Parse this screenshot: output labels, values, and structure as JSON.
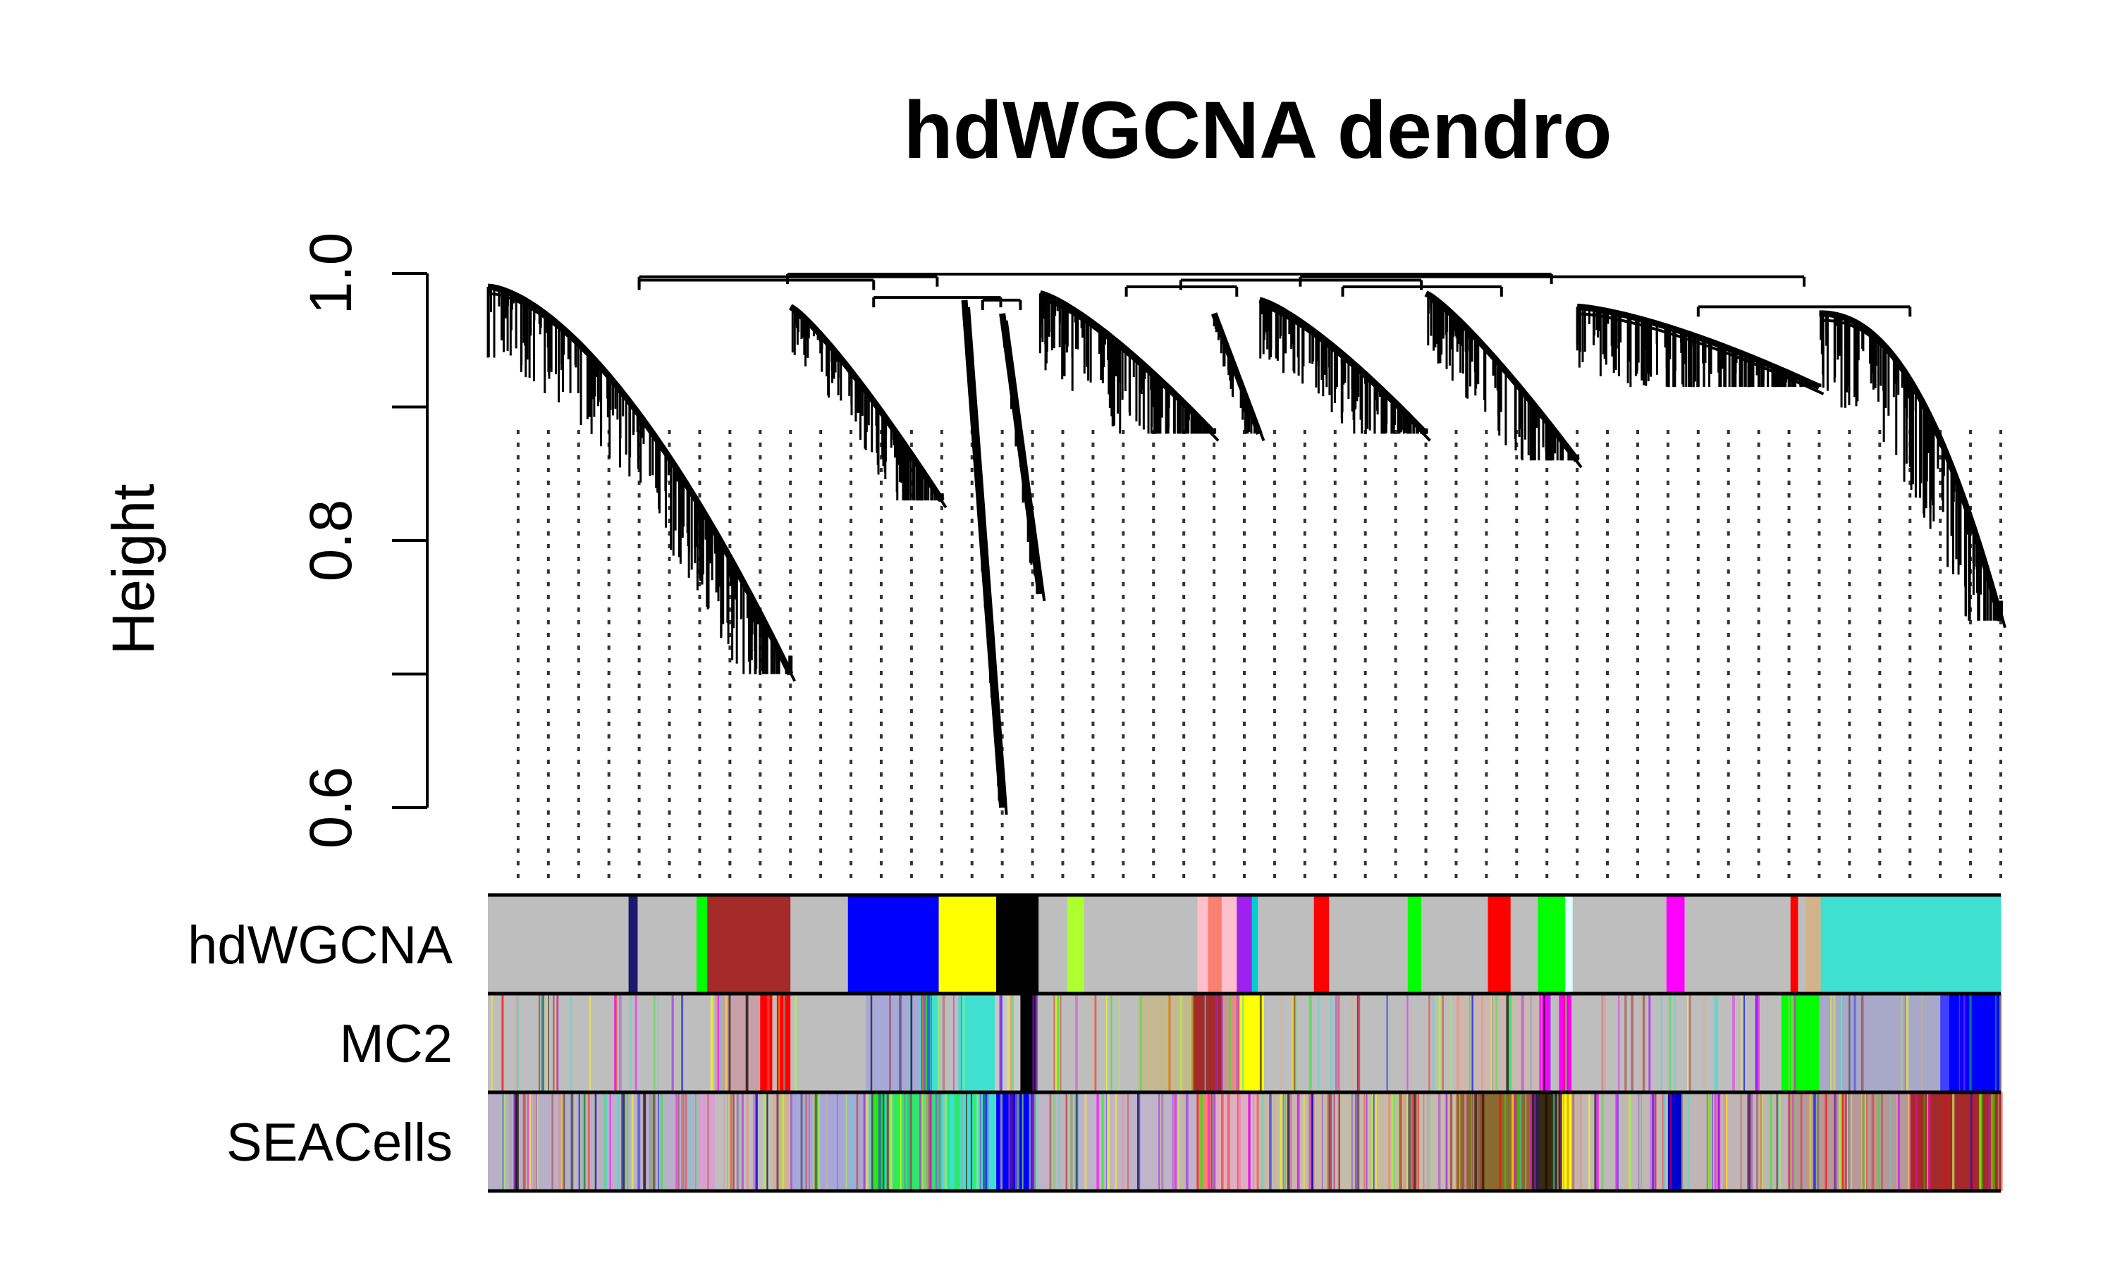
{
  "chart_data": {
    "type": "dendrogram",
    "title": "hdWGCNA dendro",
    "ylabel": "Height",
    "xlabel": "",
    "ylim": [
      0.6,
      1.0
    ],
    "y_ticks": [
      0.6,
      0.8,
      1.0
    ],
    "y_minor_ticks": [
      0.6,
      0.7,
      0.8,
      0.9,
      1.0
    ],
    "x_range": [
      0,
      1000
    ],
    "branches": [
      {
        "start": 0,
        "end": 200,
        "join": 0.99,
        "min": 0.7,
        "tail": 0.72,
        "shape": 1.6
      },
      {
        "start": 200,
        "end": 300,
        "join": 0.975,
        "min": 0.83,
        "tail": 0.4,
        "shape": 1.2
      },
      {
        "start": 315,
        "end": 340,
        "join": 0.98,
        "min": 0.6,
        "tail": 0.0,
        "shape": 1.0
      },
      {
        "start": 340,
        "end": 365,
        "join": 0.97,
        "min": 0.76,
        "tail": 0.0,
        "shape": 1.0
      },
      {
        "start": 365,
        "end": 480,
        "join": 0.985,
        "min": 0.88,
        "tail": 0.75,
        "shape": 1.3
      },
      {
        "start": 480,
        "end": 510,
        "join": 0.97,
        "min": 0.88,
        "tail": 0.0,
        "shape": 1.0
      },
      {
        "start": 510,
        "end": 620,
        "join": 0.98,
        "min": 0.88,
        "tail": 0.5,
        "shape": 1.3
      },
      {
        "start": 620,
        "end": 720,
        "join": 0.985,
        "min": 0.86,
        "tail": 0.55,
        "shape": 1.2
      },
      {
        "start": 720,
        "end": 880,
        "join": 0.975,
        "min": 0.915,
        "tail": 0.6,
        "shape": 1.4
      },
      {
        "start": 880,
        "end": 1000,
        "join": 0.97,
        "min": 0.74,
        "tail": 1.0,
        "shape": 2.2
      }
    ],
    "merges": [
      {
        "x1": 100,
        "x2": 255,
        "h": 0.995
      },
      {
        "x1": 327,
        "x2": 352,
        "h": 0.98
      },
      {
        "x1": 255,
        "x2": 339,
        "h": 0.982
      },
      {
        "x1": 100,
        "x2": 297,
        "h": 0.9975
      },
      {
        "x1": 422,
        "x2": 495,
        "h": 0.99
      },
      {
        "x1": 565,
        "x2": 670,
        "h": 0.99
      },
      {
        "x1": 458,
        "x2": 617,
        "h": 0.995
      },
      {
        "x1": 800,
        "x2": 940,
        "h": 0.975
      },
      {
        "x1": 537,
        "x2": 870,
        "h": 0.9975
      },
      {
        "x1": 198,
        "x2": 703,
        "h": 0.9995
      }
    ],
    "guide_lines": {
      "start": 20,
      "end": 1000,
      "step": 20
    },
    "color_rows": [
      {
        "name": "hdWGCNA",
        "segments": [
          {
            "start": 0,
            "end": 93,
            "color": "#bebebe"
          },
          {
            "start": 93,
            "end": 99,
            "color": "#191970"
          },
          {
            "start": 99,
            "end": 138,
            "color": "#bebebe"
          },
          {
            "start": 138,
            "end": 145,
            "color": "#00ff00"
          },
          {
            "start": 145,
            "end": 200,
            "color": "#a52a2a"
          },
          {
            "start": 200,
            "end": 238,
            "color": "#bebebe"
          },
          {
            "start": 238,
            "end": 298,
            "color": "#0000ff"
          },
          {
            "start": 298,
            "end": 336,
            "color": "#ffff00"
          },
          {
            "start": 336,
            "end": 364,
            "color": "#000000"
          },
          {
            "start": 364,
            "end": 383,
            "color": "#bebebe"
          },
          {
            "start": 383,
            "end": 394,
            "color": "#adff2f"
          },
          {
            "start": 394,
            "end": 469,
            "color": "#bebebe"
          },
          {
            "start": 469,
            "end": 476,
            "color": "#ffc0cb"
          },
          {
            "start": 476,
            "end": 485,
            "color": "#fa8072"
          },
          {
            "start": 485,
            "end": 495,
            "color": "#ffc0cb"
          },
          {
            "start": 495,
            "end": 505,
            "color": "#a020f0"
          },
          {
            "start": 505,
            "end": 509,
            "color": "#00ced1"
          },
          {
            "start": 509,
            "end": 546,
            "color": "#bebebe"
          },
          {
            "start": 546,
            "end": 556,
            "color": "#ff0000"
          },
          {
            "start": 556,
            "end": 608,
            "color": "#bebebe"
          },
          {
            "start": 608,
            "end": 617,
            "color": "#00ff00"
          },
          {
            "start": 617,
            "end": 661,
            "color": "#bebebe"
          },
          {
            "start": 661,
            "end": 676,
            "color": "#ff0000"
          },
          {
            "start": 676,
            "end": 694,
            "color": "#bebebe"
          },
          {
            "start": 694,
            "end": 712,
            "color": "#00ff00"
          },
          {
            "start": 712,
            "end": 717,
            "color": "#e0ffff"
          },
          {
            "start": 717,
            "end": 779,
            "color": "#bebebe"
          },
          {
            "start": 779,
            "end": 791,
            "color": "#ff00ff"
          },
          {
            "start": 791,
            "end": 861,
            "color": "#bebebe"
          },
          {
            "start": 861,
            "end": 866,
            "color": "#ff0000"
          },
          {
            "start": 866,
            "end": 871,
            "color": "#bebebe"
          },
          {
            "start": 871,
            "end": 881,
            "color": "#d2b48c"
          },
          {
            "start": 881,
            "end": 1000,
            "color": "#40e0d0"
          }
        ]
      },
      {
        "name": "MC2",
        "segments": [
          {
            "start": 0,
            "end": 150,
            "color": "#bebebe"
          },
          {
            "start": 150,
            "end": 180,
            "color": "#c9a0a8"
          },
          {
            "start": 180,
            "end": 188,
            "color": "#ff0000"
          },
          {
            "start": 188,
            "end": 191,
            "color": "#bebebe"
          },
          {
            "start": 191,
            "end": 200,
            "color": "#ff0000"
          },
          {
            "start": 200,
            "end": 250,
            "color": "#bebebe"
          },
          {
            "start": 250,
            "end": 285,
            "color": "#a8a8d8"
          },
          {
            "start": 285,
            "end": 298,
            "color": "#40e0d0"
          },
          {
            "start": 298,
            "end": 311,
            "color": "#bebebe"
          },
          {
            "start": 311,
            "end": 335,
            "color": "#40e0d0"
          },
          {
            "start": 335,
            "end": 352,
            "color": "#c8c8c8"
          },
          {
            "start": 352,
            "end": 362,
            "color": "#000000"
          },
          {
            "start": 362,
            "end": 430,
            "color": "#bebebe"
          },
          {
            "start": 430,
            "end": 465,
            "color": "#c4b890"
          },
          {
            "start": 465,
            "end": 485,
            "color": "#a52a2a"
          },
          {
            "start": 485,
            "end": 497,
            "color": "#c49a8a"
          },
          {
            "start": 497,
            "end": 513,
            "color": "#ffff00"
          },
          {
            "start": 513,
            "end": 640,
            "color": "#bebebe"
          },
          {
            "start": 640,
            "end": 695,
            "color": "#cbb8b0"
          },
          {
            "start": 695,
            "end": 702,
            "color": "#ff00ff"
          },
          {
            "start": 702,
            "end": 708,
            "color": "#bebebe"
          },
          {
            "start": 708,
            "end": 716,
            "color": "#ff00ff"
          },
          {
            "start": 716,
            "end": 855,
            "color": "#bebebe"
          },
          {
            "start": 855,
            "end": 880,
            "color": "#00ff00"
          },
          {
            "start": 880,
            "end": 960,
            "color": "#a8a8c8"
          },
          {
            "start": 960,
            "end": 966,
            "color": "#4040ff"
          },
          {
            "start": 966,
            "end": 1000,
            "color": "#0000ff"
          }
        ]
      },
      {
        "name": "SEACells",
        "segments": [
          {
            "start": 0,
            "end": 140,
            "color": "#b8b0c8"
          },
          {
            "start": 140,
            "end": 150,
            "color": "#d8a0d0"
          },
          {
            "start": 150,
            "end": 188,
            "color": "#bebebe"
          },
          {
            "start": 188,
            "end": 200,
            "color": "#d2b48c"
          },
          {
            "start": 200,
            "end": 255,
            "color": "#a8a8d8"
          },
          {
            "start": 255,
            "end": 262,
            "color": "#00ff00"
          },
          {
            "start": 262,
            "end": 300,
            "color": "#2ee86e"
          },
          {
            "start": 300,
            "end": 308,
            "color": "#40e0d0"
          },
          {
            "start": 308,
            "end": 312,
            "color": "#2ee86e"
          },
          {
            "start": 312,
            "end": 336,
            "color": "#40e0d0"
          },
          {
            "start": 336,
            "end": 362,
            "color": "#0000ff"
          },
          {
            "start": 362,
            "end": 470,
            "color": "#c0b4c8"
          },
          {
            "start": 470,
            "end": 480,
            "color": "#fa8072"
          },
          {
            "start": 480,
            "end": 510,
            "color": "#e0b0c0"
          },
          {
            "start": 510,
            "end": 640,
            "color": "#c4bca8"
          },
          {
            "start": 640,
            "end": 690,
            "color": "#8b6a30"
          },
          {
            "start": 690,
            "end": 710,
            "color": "#3a2a10"
          },
          {
            "start": 710,
            "end": 716,
            "color": "#ffff00"
          },
          {
            "start": 716,
            "end": 780,
            "color": "#c0b8b8"
          },
          {
            "start": 780,
            "end": 790,
            "color": "#0000cd"
          },
          {
            "start": 790,
            "end": 860,
            "color": "#c0b4b4"
          },
          {
            "start": 860,
            "end": 940,
            "color": "#b89898"
          },
          {
            "start": 940,
            "end": 1000,
            "color": "#a52a2a"
          }
        ]
      }
    ]
  }
}
